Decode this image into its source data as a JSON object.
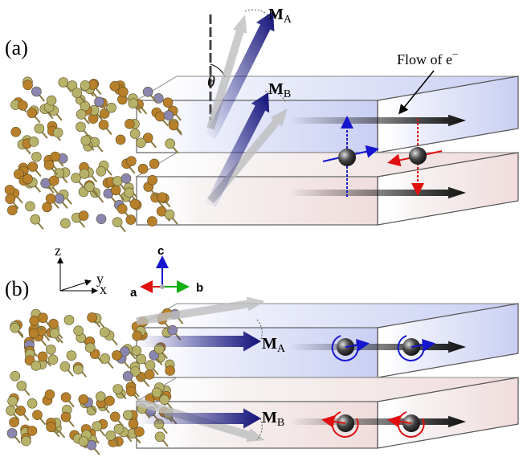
{
  "panels": [
    {
      "label": "(a)",
      "moments": [
        {
          "symbol": "M",
          "subscript": "A"
        },
        {
          "symbol": "M",
          "subscript": "B"
        }
      ],
      "angle": "θ",
      "flow_label": "Flow of e",
      "flow_superscript": "−"
    },
    {
      "label": "(b)",
      "moments": [
        {
          "symbol": "M",
          "subscript": "A"
        },
        {
          "symbol": "M",
          "subscript": "B"
        }
      ]
    }
  ],
  "axes": {
    "lab": [
      "z",
      "y",
      "x"
    ],
    "crystal": [
      "a",
      "b",
      "c"
    ]
  }
}
